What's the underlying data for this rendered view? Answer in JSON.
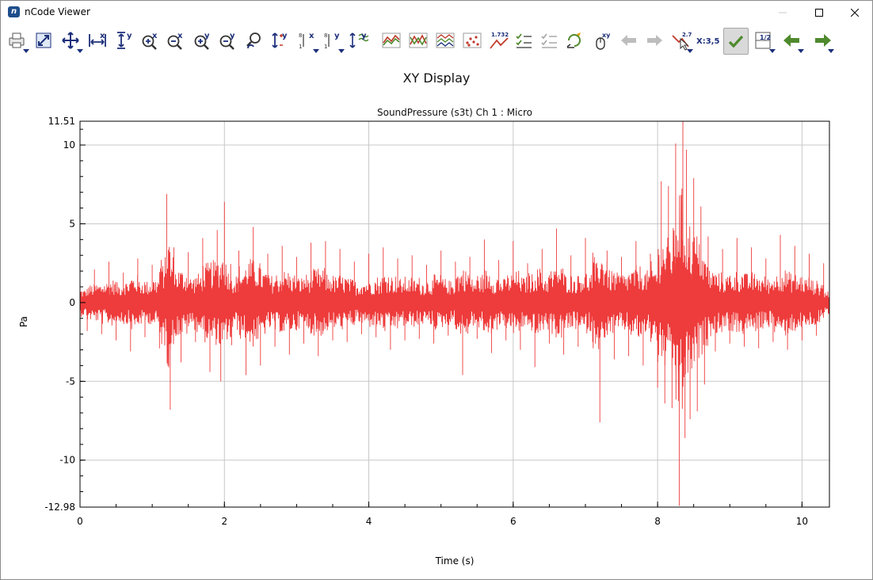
{
  "window": {
    "title": "nCode Viewer",
    "logo_text": "n"
  },
  "toolbar": {
    "buttons": [
      {
        "name": "print",
        "icon": "printer-icon",
        "dropdown": true
      },
      {
        "name": "zoom-extents",
        "icon": "zoom-extents-icon",
        "dropdown": false
      },
      {
        "name": "pan",
        "icon": "pan-arrows-icon",
        "dropdown": true
      },
      {
        "name": "fit-x",
        "icon": "fit-x-icon",
        "label": "x",
        "dropdown": false
      },
      {
        "name": "fit-y",
        "icon": "fit-y-icon",
        "label": "y",
        "dropdown": false
      },
      {
        "name": "zoom-in-x",
        "icon": "zoom-in-x-icon",
        "label": "x",
        "dropdown": false
      },
      {
        "name": "zoom-out-x",
        "icon": "zoom-out-x-icon",
        "label": "x",
        "dropdown": false
      },
      {
        "name": "zoom-in-y",
        "icon": "zoom-in-y-icon",
        "label": "y",
        "dropdown": false
      },
      {
        "name": "zoom-out-y",
        "icon": "zoom-out-y-icon",
        "label": "y",
        "dropdown": false
      },
      {
        "name": "zoom-undo",
        "icon": "zoom-undo-icon",
        "dropdown": false
      },
      {
        "name": "y-offset",
        "icon": "y-offset-icon",
        "label": "y",
        "dropdown": false
      },
      {
        "name": "x-scale",
        "icon": "x-scale-icon",
        "label": "x",
        "dropdown": true
      },
      {
        "name": "y-scale",
        "icon": "y-scale-icon",
        "label": "y",
        "dropdown": true
      },
      {
        "name": "y-scale-auto",
        "icon": "y-autoscale-icon",
        "label": "y",
        "dropdown": false
      },
      {
        "name": "overlay",
        "icon": "overlay-lines-icon",
        "dropdown": false
      },
      {
        "name": "cross-lines",
        "icon": "cross-lines-icon",
        "dropdown": false
      },
      {
        "name": "stacked",
        "icon": "stacked-lines-icon",
        "dropdown": false
      },
      {
        "name": "scatter",
        "icon": "scatter-points-icon",
        "dropdown": false
      },
      {
        "name": "values",
        "icon": "value-readout-icon",
        "label": "1.732",
        "dropdown": false
      },
      {
        "name": "select-all",
        "icon": "check-list-icon",
        "dropdown": false
      },
      {
        "name": "select-none",
        "icon": "uncheck-list-icon",
        "dropdown": false
      },
      {
        "name": "refresh",
        "icon": "refresh-edit-icon",
        "dropdown": false
      },
      {
        "name": "mouse-xy",
        "icon": "mouse-xy-icon",
        "label": "xy",
        "dropdown": false
      },
      {
        "name": "back-disabled",
        "icon": "arrow-left-gray-icon",
        "dropdown": false
      },
      {
        "name": "forward-disabled",
        "icon": "arrow-right-gray-icon",
        "dropdown": false
      },
      {
        "name": "cursor",
        "icon": "cursor-value-icon",
        "label": "2.7",
        "dropdown": true
      },
      {
        "name": "coordinates",
        "icon": "coordinate-text-icon",
        "label": "X:3,5",
        "dropdown": false
      },
      {
        "name": "accept",
        "icon": "checkmark-icon",
        "dropdown": false,
        "active": true
      },
      {
        "name": "page",
        "icon": "page-fraction-icon",
        "label": "1/2",
        "dropdown": true
      },
      {
        "name": "previous",
        "icon": "arrow-left-green-icon",
        "dropdown": true
      },
      {
        "name": "next",
        "icon": "arrow-right-green-icon",
        "dropdown": true
      }
    ]
  },
  "display": {
    "title": "XY Display"
  },
  "colors": {
    "signal": "#ee3b3b",
    "grid": "#c8c8c8",
    "toolbar_blue": "#1c2f7a",
    "toolbar_green": "#4f8a2e"
  },
  "chart_data": {
    "type": "line",
    "title": "SoundPressure (s3t)  Ch 1 : Micro",
    "xlabel": "Time (s)",
    "ylabel": "Pa",
    "xlim": [
      0,
      10.38
    ],
    "ylim": [
      -12.98,
      11.51
    ],
    "xticks": [
      0,
      2,
      4,
      6,
      8,
      10
    ],
    "xtick_labels": [
      "0",
      "2",
      "4",
      "6",
      "8",
      "10"
    ],
    "yticks": [
      11.51,
      10,
      5,
      0,
      -5,
      -10,
      -12.98
    ],
    "ytick_labels": [
      "11.51",
      "10",
      "5",
      "0",
      "-5",
      "-10",
      "-12.98"
    ],
    "grid": true,
    "series": [
      {
        "color": "#ee3b3b",
        "x": [
          0,
          0.1,
          0.2,
          0.3,
          0.4,
          0.5,
          0.6,
          0.7,
          0.8,
          0.9,
          1.0,
          1.1,
          1.2,
          1.25,
          1.3,
          1.4,
          1.5,
          1.6,
          1.7,
          1.8,
          1.9,
          1.95,
          2.0,
          2.1,
          2.2,
          2.3,
          2.4,
          2.5,
          2.6,
          2.7,
          2.8,
          2.9,
          3.0,
          3.1,
          3.2,
          3.3,
          3.4,
          3.5,
          3.6,
          3.7,
          3.8,
          3.9,
          4.0,
          4.1,
          4.2,
          4.3,
          4.4,
          4.5,
          4.6,
          4.7,
          4.8,
          4.9,
          5.0,
          5.1,
          5.2,
          5.3,
          5.4,
          5.5,
          5.6,
          5.7,
          5.8,
          5.9,
          6.0,
          6.1,
          6.2,
          6.3,
          6.4,
          6.5,
          6.6,
          6.7,
          6.8,
          6.9,
          7.0,
          7.1,
          7.2,
          7.3,
          7.4,
          7.5,
          7.6,
          7.7,
          7.8,
          7.9,
          8.0,
          8.05,
          8.1,
          8.15,
          8.2,
          8.25,
          8.3,
          8.35,
          8.38,
          8.4,
          8.45,
          8.5,
          8.55,
          8.6,
          8.65,
          8.7,
          8.8,
          8.9,
          9.0,
          9.1,
          9.2,
          9.3,
          9.4,
          9.5,
          9.6,
          9.7,
          9.8,
          9.9,
          10.0,
          10.1,
          10.2,
          10.3,
          10.38
        ],
        "y": [
          1.2,
          -1.8,
          2.1,
          -2.0,
          2.6,
          -2.4,
          1.9,
          -3.1,
          2.8,
          -2.2,
          2.4,
          -2.9,
          6.9,
          -6.8,
          3.5,
          -3.8,
          3.2,
          -2.5,
          4.1,
          -4.4,
          4.6,
          -5.0,
          6.4,
          -2.7,
          3.3,
          -4.6,
          4.8,
          -4.0,
          3.1,
          -2.8,
          3.6,
          -3.3,
          2.9,
          -2.6,
          3.8,
          -3.4,
          3.9,
          -2.4,
          3.4,
          -2.5,
          2.6,
          -2.0,
          3.1,
          -2.2,
          3.5,
          -3.0,
          2.8,
          -2.4,
          3.0,
          -2.3,
          2.4,
          -2.6,
          3.3,
          -2.1,
          2.6,
          -4.6,
          2.9,
          -2.3,
          4.0,
          -3.2,
          2.7,
          -2.4,
          3.9,
          -3.0,
          2.5,
          -4.1,
          3.4,
          -2.6,
          4.7,
          -3.3,
          3.0,
          -2.8,
          4.1,
          -2.5,
          -7.6,
          3.3,
          -3.6,
          2.9,
          -3.4,
          3.9,
          -4.0,
          3.1,
          -5.4,
          7.7,
          -6.4,
          7.4,
          -6.7,
          10.1,
          -12.9,
          11.5,
          -8.6,
          9.7,
          -7.4,
          7.9,
          -6.9,
          6.1,
          -5.2,
          4.2,
          -3.1,
          3.4,
          -2.6,
          4.1,
          -2.8,
          3.5,
          -2.9,
          2.8,
          -2.5,
          4.3,
          -3.0,
          3.6,
          -2.4,
          3.1,
          -2.1,
          2.5,
          -0.4
        ]
      }
    ]
  }
}
